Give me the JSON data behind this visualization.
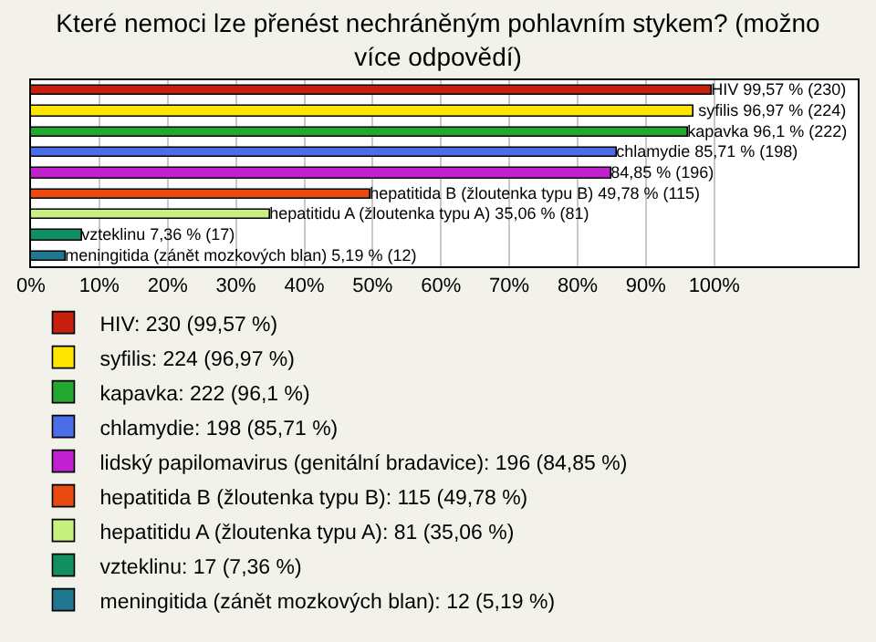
{
  "chart_data": {
    "type": "bar",
    "orientation": "horizontal",
    "title": "Které nemoci lze přenést nechráněným pohlavním stykem? (možno více odpovědí)",
    "categories": [
      null,
      null,
      null,
      null,
      null,
      null,
      null,
      null,
      null
    ],
    "series": [
      {
        "name": "HIV: 230 (99,57 %)",
        "color": "#c8200f",
        "values": [
          99.57,
          null,
          null,
          null,
          null,
          null,
          null,
          null,
          null
        ],
        "value_labels": [
          "HIV 99,57 % (230)",
          null,
          null,
          null,
          null,
          null,
          null,
          null,
          null
        ]
      },
      {
        "name": "syfilis: 224 (96,97 %)",
        "color": "#ffe600",
        "values": [
          null,
          96.97,
          null,
          null,
          null,
          null,
          null,
          null,
          null
        ],
        "value_labels": [
          null,
          "syfilis 96,97 % (224)",
          null,
          null,
          null,
          null,
          null,
          null,
          null
        ]
      },
      {
        "name": "kapavka: 222 (96,1 %)",
        "color": "#22a830",
        "values": [
          null,
          null,
          96.1,
          null,
          null,
          null,
          null,
          null,
          null
        ],
        "value_labels": [
          null,
          null,
          "kapavka 96,1 % (222)",
          null,
          null,
          null,
          null,
          null,
          null
        ]
      },
      {
        "name": "chlamydie: 198 (85,71 %)",
        "color": "#4a6ee8",
        "values": [
          null,
          null,
          null,
          85.71,
          null,
          null,
          null,
          null,
          null
        ],
        "value_labels": [
          null,
          null,
          null,
          "chlamydie 85,71 % (198)",
          null,
          null,
          null,
          null,
          null
        ]
      },
      {
        "name": "lidský papilomavirus (genitální bradavice): 196 (84,85 %)",
        "color": "#c020d0",
        "values": [
          null,
          null,
          null,
          null,
          84.85,
          null,
          null,
          null,
          null
        ],
        "value_labels": [
          null,
          null,
          null,
          null,
          "84,85 % (196)",
          null,
          null,
          null,
          null
        ]
      },
      {
        "name": "hepatitida B (žloutenka typu B): 115 (49,78 %)",
        "color": "#e84a10",
        "values": [
          null,
          null,
          null,
          null,
          null,
          49.78,
          null,
          null,
          null
        ],
        "value_labels": [
          null,
          null,
          null,
          null,
          null,
          "hepatitida B (žloutenka typu B) 49,78 % (115)",
          null,
          null,
          null
        ]
      },
      {
        "name": "hepatitidu A (žloutenka typu A): 81 (35,06 %)",
        "color": "#c8f080",
        "values": [
          null,
          null,
          null,
          null,
          null,
          null,
          35.06,
          null,
          null
        ],
        "value_labels": [
          null,
          null,
          null,
          null,
          null,
          null,
          "hepatitidu A (žloutenka typu A) 35,06 % (81)",
          null,
          null
        ]
      },
      {
        "name": "vzteklinu: 17 (7,36 %)",
        "color": "#109060",
        "values": [
          null,
          null,
          null,
          null,
          null,
          null,
          null,
          7.36,
          null
        ],
        "value_labels": [
          null,
          null,
          null,
          null,
          null,
          null,
          null,
          "vzteklinu 7,36 % (17)",
          null
        ]
      },
      {
        "name": "meningitida (zánět mozkových blan): 12 (5,19 %)",
        "color": "#207890",
        "values": [
          null,
          null,
          null,
          null,
          null,
          null,
          null,
          null,
          5.19
        ],
        "value_labels": [
          null,
          null,
          null,
          null,
          null,
          null,
          null,
          null,
          "meningitida (zánět mozkových blan) 5,19 % (12)"
        ]
      }
    ],
    "xlim": [
      0,
      121
    ],
    "xticks": [
      {
        "value": 0,
        "label": "0%"
      },
      {
        "value": 10,
        "label": "10%"
      },
      {
        "value": 20,
        "label": "20%"
      },
      {
        "value": 30,
        "label": "30%"
      },
      {
        "value": 40,
        "label": "40%"
      },
      {
        "value": 50,
        "label": "50%"
      },
      {
        "value": 60,
        "label": "60%"
      },
      {
        "value": 70,
        "label": "70%"
      },
      {
        "value": 80,
        "label": "80%"
      },
      {
        "value": 90,
        "label": "90%"
      },
      {
        "value": 100,
        "label": "100%"
      }
    ],
    "grid": "x",
    "legend": "bottom",
    "tick_labels": "x"
  }
}
